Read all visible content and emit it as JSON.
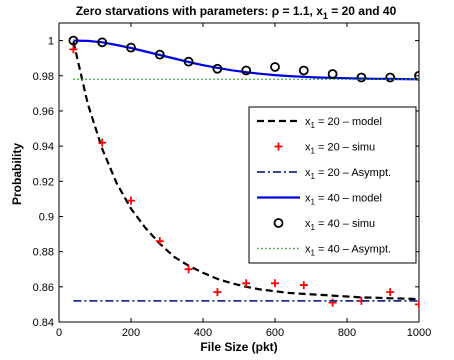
{
  "chart_data": {
    "type": "line",
    "title": "Zero starvations with parameters: ρ = 1.1, x₁ = 20 and 40",
    "title_parts": {
      "prefix": "Zero starvations with parameters: ρ = 1.1, x",
      "sub": "1",
      "suffix": " = 20 and 40"
    },
    "xlabel": "File Size (pkt)",
    "ylabel": "Probability",
    "xlim": [
      0,
      1000
    ],
    "ylim": [
      0.84,
      1.01
    ],
    "xticks": [
      0,
      200,
      400,
      600,
      800,
      1000
    ],
    "yticks": [
      0.84,
      0.86,
      0.88,
      0.9,
      0.92,
      0.94,
      0.96,
      0.98,
      1
    ],
    "grid": false,
    "legend_position": "right",
    "series": [
      {
        "name": "x₁ = 20 – model",
        "legend": {
          "var": "x",
          "sub": "1",
          "text": " = 20 – model"
        },
        "style": "dashed",
        "color": "#000000",
        "x": [
          40,
          80,
          120,
          160,
          200,
          240,
          280,
          320,
          360,
          400,
          440,
          480,
          520,
          560,
          600,
          640,
          680,
          720,
          760,
          800,
          840,
          880,
          920,
          960,
          1000
        ],
        "y": [
          0.9995,
          0.964,
          0.9385,
          0.919,
          0.9045,
          0.8935,
          0.8845,
          0.877,
          0.872,
          0.868,
          0.8645,
          0.862,
          0.86,
          0.8585,
          0.8575,
          0.8565,
          0.856,
          0.8555,
          0.855,
          0.8545,
          0.854,
          0.8538,
          0.8535,
          0.8533,
          0.853
        ]
      },
      {
        "name": "x₁ = 20 – simu",
        "legend": {
          "var": "x",
          "sub": "1",
          "text": " = 20 – simu"
        },
        "style": "plus",
        "color": "#ff0000",
        "x": [
          40,
          120,
          200,
          280,
          360,
          440,
          520,
          600,
          680,
          760,
          840,
          920,
          1000
        ],
        "y": [
          0.995,
          0.942,
          0.909,
          0.886,
          0.87,
          0.857,
          0.862,
          0.862,
          0.861,
          0.851,
          0.852,
          0.857,
          0.85
        ]
      },
      {
        "name": "x₁ = 20 – Asympt.",
        "legend": {
          "var": "x",
          "sub": "1",
          "text": " = 20 – Asympt."
        },
        "style": "dashdot",
        "color": "#1a2a8c",
        "x": [
          40,
          1000
        ],
        "y": [
          0.852,
          0.852
        ]
      },
      {
        "name": "x₁ = 40 – model",
        "legend": {
          "var": "x",
          "sub": "1",
          "text": " = 40 – model"
        },
        "style": "solid",
        "color": "#0000e6",
        "x": [
          40,
          80,
          120,
          160,
          200,
          240,
          280,
          320,
          360,
          400,
          440,
          480,
          520,
          560,
          600,
          640,
          680,
          720,
          760,
          800,
          840,
          880,
          920,
          960,
          1000
        ],
        "y": [
          1.0,
          0.9998,
          0.999,
          0.9975,
          0.9958,
          0.9938,
          0.9918,
          0.9898,
          0.9878,
          0.986,
          0.9845,
          0.9831,
          0.982,
          0.9811,
          0.9804,
          0.9798,
          0.9794,
          0.979,
          0.9788,
          0.9786,
          0.9784,
          0.9783,
          0.9782,
          0.9781,
          0.978
        ]
      },
      {
        "name": "x₁ = 40 – simu",
        "legend": {
          "var": "x",
          "sub": "1",
          "text": " = 40 – simu"
        },
        "style": "circle",
        "color": "#000000",
        "x": [
          40,
          120,
          200,
          280,
          360,
          440,
          520,
          600,
          680,
          760,
          840,
          920,
          1000
        ],
        "y": [
          1.0,
          0.999,
          0.996,
          0.992,
          0.988,
          0.984,
          0.983,
          0.985,
          0.983,
          0.981,
          0.979,
          0.979,
          0.98
        ]
      },
      {
        "name": "x₁ = 40 – Asympt.",
        "legend": {
          "var": "x",
          "sub": "1",
          "text": " = 40 – Asympt."
        },
        "style": "dotted",
        "color": "#2e9a2e",
        "x": [
          40,
          1000
        ],
        "y": [
          0.978,
          0.978
        ]
      }
    ]
  }
}
